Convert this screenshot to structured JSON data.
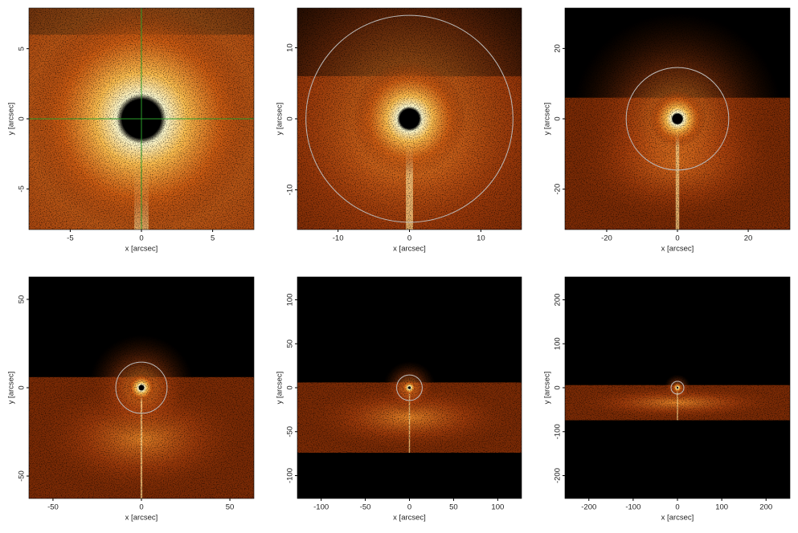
{
  "chart_data": [
    {
      "type": "image",
      "x_label": "x [arcsec]",
      "y_label": "y [arcsec]",
      "xlim": [
        -7.9,
        7.9
      ],
      "ylim": [
        -7.9,
        7.9
      ],
      "xticks": [
        -5,
        0,
        5
      ],
      "yticks": [
        -5,
        0,
        5
      ]
    },
    {
      "type": "image",
      "x_label": "x [arcsec]",
      "y_label": "y [arcsec]",
      "xlim": [
        -15.7,
        15.7
      ],
      "ylim": [
        -15.6,
        15.6
      ],
      "xticks": [
        -10,
        0,
        10
      ],
      "yticks": [
        -10,
        0,
        10
      ]
    },
    {
      "type": "image",
      "x_label": "x [arcsec]",
      "y_label": "y [arcsec]",
      "xlim": [
        -31.8,
        31.8
      ],
      "ylim": [
        -31.5,
        31.5
      ],
      "xticks": [
        -20,
        0,
        20
      ],
      "yticks": [
        -20,
        0,
        20
      ]
    },
    {
      "type": "image",
      "x_label": "x [arcsec]",
      "y_label": "y [arcsec]",
      "xlim": [
        -63.6,
        63.6
      ],
      "ylim": [
        -62.7,
        62.7
      ],
      "xticks": [
        -50,
        0,
        50
      ],
      "yticks": [
        -50,
        0,
        50
      ]
    },
    {
      "type": "image",
      "x_label": "x [arcsec]",
      "y_label": "y [arcsec]",
      "xlim": [
        -127,
        127
      ],
      "ylim": [
        -126,
        126
      ],
      "xticks": [
        -100,
        -50,
        0,
        50,
        100
      ],
      "yticks": [
        -100,
        -50,
        0,
        50,
        100
      ]
    },
    {
      "type": "image",
      "x_label": "x [arcsec]",
      "y_label": "y [arcsec]",
      "xlim": [
        -254,
        254
      ],
      "ylim": [
        -252,
        252
      ],
      "xticks": [
        -200,
        -100,
        0,
        100,
        200
      ],
      "yticks": [
        -200,
        -100,
        0,
        100,
        200
      ]
    }
  ]
}
